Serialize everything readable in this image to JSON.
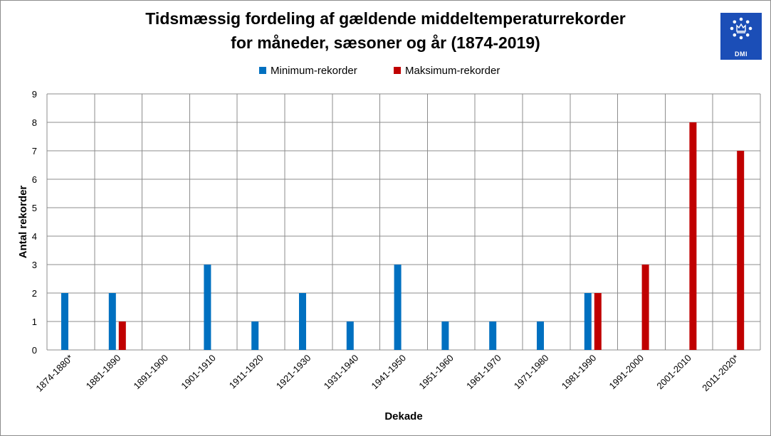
{
  "chart_data": {
    "type": "bar",
    "title": [
      "Tidsmæssig fordeling af gældende middeltemperaturrekorder",
      "for måneder, sæsoner og år (1874-2019)"
    ],
    "xlabel": "Dekade",
    "ylabel": "Antal rekorder",
    "ylim": [
      0,
      9
    ],
    "yticks": [
      "0",
      "1",
      "2",
      "3",
      "4",
      "5",
      "6",
      "7",
      "8",
      "9"
    ],
    "grid": true,
    "legend_position": "top",
    "categories": [
      "1874-1880*",
      "1881-1890",
      "1891-1900",
      "1901-1910",
      "1911-1920",
      "1921-1930",
      "1931-1940",
      "1941-1950",
      "1951-1960",
      "1961-1970",
      "1971-1980",
      "1981-1990",
      "1991-2000",
      "2001-2010",
      "2011-2020*"
    ],
    "series": [
      {
        "name": "Minimum-rekorder",
        "color": "#0070c0",
        "values": [
          2,
          2,
          0,
          3,
          1,
          2,
          1,
          3,
          1,
          1,
          1,
          2,
          0,
          0,
          0
        ]
      },
      {
        "name": "Maksimum-rekorder",
        "color": "#c00000",
        "values": [
          0,
          1,
          0,
          0,
          0,
          0,
          0,
          0,
          0,
          0,
          0,
          2,
          3,
          8,
          7
        ]
      }
    ]
  },
  "logo": {
    "text": "DMI",
    "color": "#1b4eb7",
    "icon": "crown-in-star-circle-icon"
  }
}
